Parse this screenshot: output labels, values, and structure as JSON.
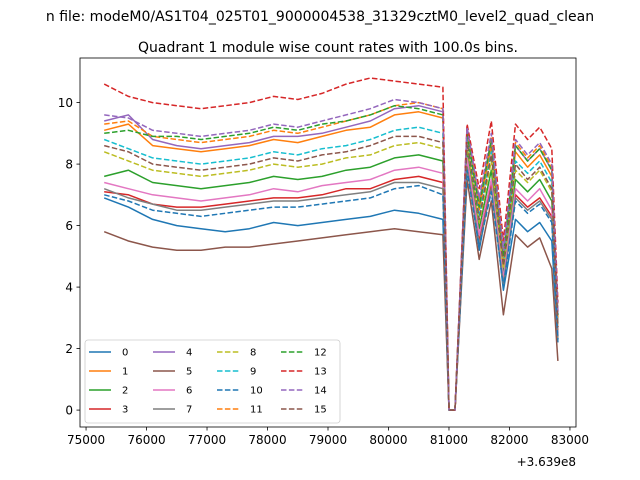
{
  "figure": {
    "suptitle": "n file: modeM0/AS1T04_025T01_9000004538_31329cztM0_level2_quad_clean",
    "title": "Quadrant 1 module wise count rates with 100.0s bins.",
    "offset_label": "+3.639e8"
  },
  "chart_data": {
    "type": "line",
    "title": "Quadrant 1 module wise count rates with 100.0s bins.",
    "xlabel": "",
    "ylabel": "",
    "x_offset": 363900000,
    "xlim": [
      74900,
      83100
    ],
    "ylim": [
      -0.55,
      11.45
    ],
    "x_ticks": [
      75000,
      76000,
      77000,
      78000,
      79000,
      80000,
      81000,
      82000,
      83000
    ],
    "y_ticks": [
      0,
      2,
      4,
      6,
      8,
      10
    ],
    "grid": false,
    "legend": {
      "position": "lower-left",
      "columns": 4
    },
    "key_x": [
      75300,
      75700,
      76100,
      76500,
      76900,
      77300,
      77700,
      78100,
      78500,
      78900,
      79300,
      79700,
      80100,
      80500,
      80900,
      81000,
      81100,
      81300,
      81500,
      81700,
      81900,
      82100,
      82300,
      82500,
      82700,
      82800
    ],
    "series": [
      {
        "name": "0",
        "color": "#1f77b4",
        "dash": "solid",
        "values": [
          6.9,
          6.6,
          6.2,
          6.0,
          5.9,
          5.8,
          5.9,
          6.1,
          6.0,
          6.1,
          6.2,
          6.3,
          6.5,
          6.4,
          6.2,
          0.0,
          0.0,
          8.1,
          5.2,
          7.4,
          3.9,
          6.2,
          5.8,
          6.1,
          5.5,
          2.2
        ]
      },
      {
        "name": "1",
        "color": "#ff7f0e",
        "dash": "solid",
        "values": [
          9.1,
          9.3,
          8.6,
          8.5,
          8.4,
          8.5,
          8.6,
          8.8,
          8.7,
          8.9,
          9.1,
          9.2,
          9.6,
          9.7,
          9.5,
          0.0,
          0.0,
          9.0,
          6.5,
          8.6,
          4.9,
          8.4,
          7.9,
          8.3,
          7.6,
          3.0
        ]
      },
      {
        "name": "2",
        "color": "#2ca02c",
        "dash": "solid",
        "values": [
          7.6,
          7.8,
          7.4,
          7.3,
          7.2,
          7.3,
          7.4,
          7.6,
          7.5,
          7.6,
          7.8,
          7.9,
          8.2,
          8.3,
          8.1,
          0.0,
          0.0,
          8.4,
          5.9,
          7.8,
          4.4,
          7.5,
          7.1,
          7.5,
          6.8,
          2.6
        ]
      },
      {
        "name": "3",
        "color": "#d62728",
        "dash": "solid",
        "values": [
          7.1,
          7.0,
          6.7,
          6.6,
          6.6,
          6.7,
          6.8,
          6.9,
          6.9,
          7.0,
          7.2,
          7.2,
          7.5,
          7.6,
          7.4,
          0.0,
          0.0,
          8.0,
          5.5,
          7.3,
          4.2,
          7.0,
          6.6,
          6.9,
          6.3,
          2.4
        ]
      },
      {
        "name": "4",
        "color": "#9467bd",
        "dash": "solid",
        "values": [
          9.4,
          9.6,
          8.8,
          8.6,
          8.5,
          8.6,
          8.7,
          8.9,
          8.9,
          9.0,
          9.2,
          9.4,
          9.8,
          9.9,
          9.7,
          0.0,
          0.0,
          9.2,
          6.8,
          8.8,
          5.1,
          8.6,
          8.1,
          8.5,
          7.8,
          3.1
        ]
      },
      {
        "name": "5",
        "color": "#8c564b",
        "dash": "solid",
        "values": [
          5.8,
          5.5,
          5.3,
          5.2,
          5.2,
          5.3,
          5.3,
          5.4,
          5.5,
          5.6,
          5.7,
          5.8,
          5.9,
          5.8,
          5.7,
          0.0,
          0.0,
          7.5,
          4.9,
          6.8,
          3.1,
          5.7,
          5.3,
          5.6,
          4.6,
          1.6
        ]
      },
      {
        "name": "6",
        "color": "#e377c2",
        "dash": "solid",
        "values": [
          7.4,
          7.2,
          7.0,
          6.9,
          6.8,
          6.9,
          7.0,
          7.2,
          7.1,
          7.3,
          7.4,
          7.5,
          7.8,
          7.9,
          7.7,
          0.0,
          0.0,
          8.2,
          5.7,
          7.5,
          4.3,
          7.2,
          6.8,
          7.2,
          6.5,
          2.5
        ]
      },
      {
        "name": "7",
        "color": "#7f7f7f",
        "dash": "solid",
        "values": [
          7.2,
          6.9,
          6.7,
          6.5,
          6.5,
          6.6,
          6.7,
          6.8,
          6.8,
          6.9,
          7.0,
          7.1,
          7.4,
          7.4,
          7.2,
          0.0,
          0.0,
          7.9,
          5.4,
          7.2,
          4.1,
          6.9,
          6.5,
          6.8,
          6.2,
          2.3
        ]
      },
      {
        "name": "8",
        "color": "#bcbd22",
        "dash": "dashed",
        "values": [
          8.4,
          8.1,
          7.8,
          7.7,
          7.6,
          7.7,
          7.8,
          8.0,
          7.9,
          8.0,
          8.2,
          8.3,
          8.6,
          8.7,
          8.5,
          0.0,
          0.0,
          8.6,
          6.1,
          8.1,
          4.6,
          7.8,
          7.4,
          7.8,
          7.1,
          2.7
        ]
      },
      {
        "name": "9",
        "color": "#17becf",
        "dash": "dashed",
        "values": [
          8.8,
          8.5,
          8.2,
          8.1,
          8.0,
          8.1,
          8.2,
          8.4,
          8.3,
          8.5,
          8.6,
          8.8,
          9.1,
          9.2,
          9.0,
          0.0,
          0.0,
          8.8,
          6.3,
          8.4,
          4.8,
          8.1,
          7.7,
          8.1,
          7.4,
          2.8
        ]
      },
      {
        "name": "10",
        "color": "#1f77b4",
        "dash": "dashed",
        "values": [
          7.0,
          6.8,
          6.5,
          6.4,
          6.3,
          6.4,
          6.5,
          6.6,
          6.6,
          6.7,
          6.8,
          6.9,
          7.2,
          7.3,
          7.0,
          0.0,
          0.0,
          7.8,
          5.3,
          7.1,
          4.0,
          6.8,
          6.4,
          6.7,
          6.1,
          2.3
        ]
      },
      {
        "name": "11",
        "color": "#ff7f0e",
        "dash": "dashed",
        "values": [
          9.3,
          9.4,
          8.9,
          8.8,
          8.7,
          8.8,
          8.9,
          9.1,
          9.0,
          9.2,
          9.4,
          9.6,
          9.9,
          10.0,
          9.8,
          0.0,
          0.0,
          9.1,
          6.7,
          8.9,
          5.0,
          8.7,
          8.2,
          8.6,
          7.9,
          3.2
        ]
      },
      {
        "name": "12",
        "color": "#2ca02c",
        "dash": "dashed",
        "values": [
          9.0,
          9.1,
          8.9,
          8.9,
          8.8,
          8.9,
          9.0,
          9.2,
          9.1,
          9.3,
          9.4,
          9.6,
          9.9,
          9.8,
          9.6,
          0.0,
          0.0,
          9.0,
          6.6,
          8.8,
          5.0,
          8.6,
          8.1,
          8.5,
          7.8,
          3.1
        ]
      },
      {
        "name": "13",
        "color": "#d62728",
        "dash": "dashed",
        "values": [
          10.6,
          10.2,
          10.0,
          9.9,
          9.8,
          9.9,
          10.0,
          10.2,
          10.1,
          10.3,
          10.6,
          10.8,
          10.7,
          10.6,
          10.5,
          0.0,
          0.0,
          9.3,
          7.2,
          9.4,
          5.5,
          9.3,
          8.8,
          9.2,
          8.5,
          3.5
        ]
      },
      {
        "name": "14",
        "color": "#9467bd",
        "dash": "dashed",
        "values": [
          9.6,
          9.5,
          9.1,
          9.0,
          8.9,
          9.0,
          9.1,
          9.3,
          9.2,
          9.4,
          9.6,
          9.8,
          10.1,
          10.0,
          9.8,
          0.0,
          0.0,
          9.2,
          6.9,
          9.0,
          5.2,
          8.8,
          8.3,
          8.7,
          8.0,
          3.2
        ]
      },
      {
        "name": "15",
        "color": "#8c564b",
        "dash": "dashed",
        "values": [
          8.6,
          8.4,
          8.0,
          7.9,
          7.8,
          7.9,
          8.0,
          8.2,
          8.1,
          8.3,
          8.4,
          8.6,
          8.9,
          8.9,
          8.7,
          0.0,
          0.0,
          8.7,
          6.2,
          8.3,
          4.7,
          8.0,
          7.5,
          7.9,
          7.2,
          2.7
        ]
      }
    ]
  }
}
